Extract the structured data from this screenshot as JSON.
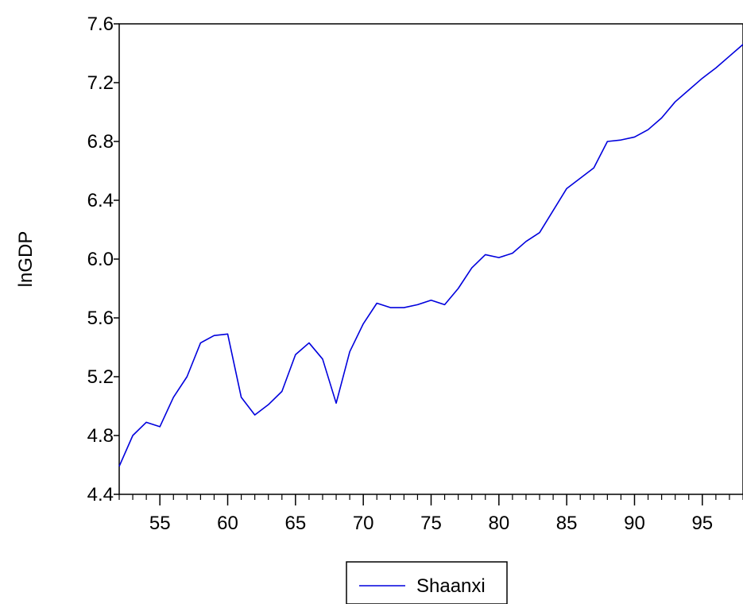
{
  "chart_data": {
    "type": "line",
    "title": "",
    "xlabel": "",
    "ylabel": "lnGDP",
    "xlim": [
      52,
      98
    ],
    "ylim": [
      4.4,
      7.6
    ],
    "x_ticks": [
      "55",
      "60",
      "65",
      "70",
      "75",
      "80",
      "85",
      "90",
      "95"
    ],
    "y_ticks": [
      "4.4",
      "4.8",
      "5.2",
      "5.6",
      "6.0",
      "6.4",
      "6.8",
      "7.2",
      "7.6"
    ],
    "grid": false,
    "legend_position": "bottom-center",
    "x": [
      52,
      53,
      54,
      55,
      56,
      57,
      58,
      59,
      60,
      61,
      62,
      63,
      64,
      65,
      66,
      67,
      68,
      69,
      70,
      71,
      72,
      73,
      74,
      75,
      76,
      77,
      78,
      79,
      80,
      81,
      82,
      83,
      84,
      85,
      86,
      87,
      88,
      89,
      90,
      91,
      92,
      93,
      94,
      95,
      96,
      97,
      98
    ],
    "series": [
      {
        "name": "Shaanxi",
        "color": "#0000dd",
        "values": [
          4.59,
          4.8,
          4.89,
          4.86,
          5.06,
          5.2,
          5.43,
          5.48,
          5.49,
          5.06,
          4.94,
          5.01,
          5.1,
          5.35,
          5.43,
          5.32,
          5.02,
          5.37,
          5.56,
          5.7,
          5.67,
          5.67,
          5.69,
          5.72,
          5.69,
          5.8,
          5.94,
          6.03,
          6.01,
          6.04,
          6.12,
          6.18,
          6.33,
          6.48,
          6.55,
          6.62,
          6.8,
          6.81,
          6.83,
          6.88,
          6.96,
          7.07,
          7.15,
          7.23,
          7.3,
          7.38,
          7.46
        ]
      }
    ]
  }
}
